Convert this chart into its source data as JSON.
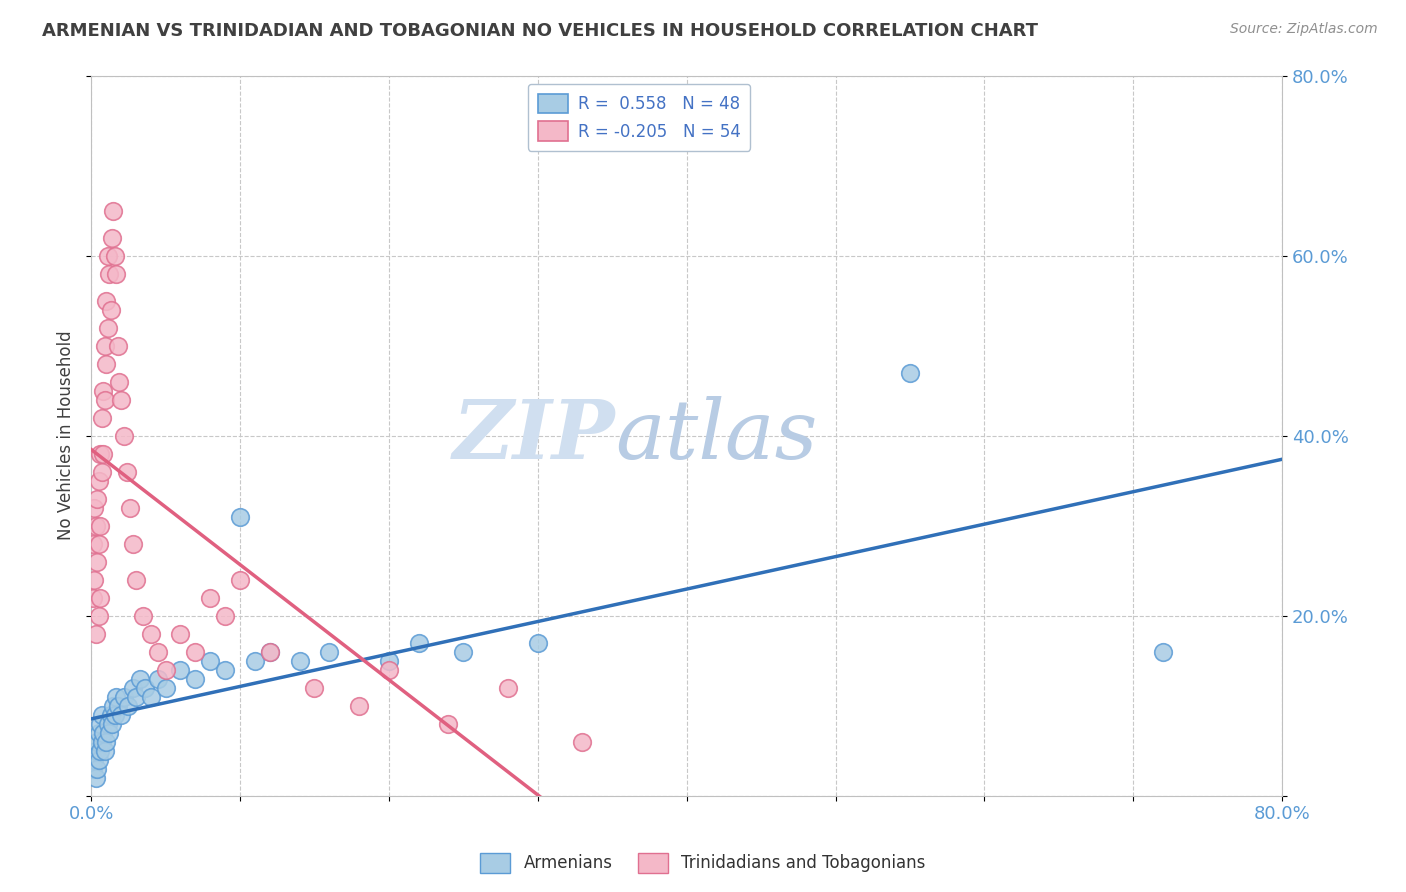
{
  "title": "ARMENIAN VS TRINIDADIAN AND TOBAGONIAN NO VEHICLES IN HOUSEHOLD CORRELATION CHART",
  "source": "Source: ZipAtlas.com",
  "ylabel": "No Vehicles in Household",
  "xlim": [
    0.0,
    0.8
  ],
  "ylim": [
    0.0,
    0.8
  ],
  "legend_armenians": "Armenians",
  "legend_trinidadians": "Trinidadians and Tobagonians",
  "armenian_R": "0.558",
  "armenian_N": "48",
  "trinidadian_R": "-0.205",
  "trinidadian_N": "54",
  "blue_scatter_color": "#a8cce4",
  "blue_scatter_edge": "#5b9bd5",
  "pink_scatter_color": "#f4b8c8",
  "pink_scatter_edge": "#e07090",
  "blue_line_color": "#3070b8",
  "pink_line_color": "#e06080",
  "watermark_color": "#d0dff0",
  "background_color": "#ffffff",
  "grid_color": "#c8c8c8",
  "title_color": "#404040",
  "axis_label_color": "#5b9bd5",
  "legend_text_color": "#4472c4",
  "armenian_points_x": [
    0.001,
    0.002,
    0.003,
    0.003,
    0.004,
    0.004,
    0.005,
    0.005,
    0.006,
    0.006,
    0.007,
    0.007,
    0.008,
    0.009,
    0.01,
    0.011,
    0.012,
    0.013,
    0.014,
    0.015,
    0.016,
    0.017,
    0.018,
    0.02,
    0.022,
    0.025,
    0.028,
    0.03,
    0.033,
    0.036,
    0.04,
    0.045,
    0.05,
    0.06,
    0.07,
    0.08,
    0.09,
    0.1,
    0.11,
    0.12,
    0.14,
    0.16,
    0.2,
    0.22,
    0.25,
    0.3,
    0.55,
    0.72
  ],
  "armenian_points_y": [
    0.03,
    0.04,
    0.05,
    0.02,
    0.03,
    0.06,
    0.04,
    0.07,
    0.05,
    0.08,
    0.06,
    0.09,
    0.07,
    0.05,
    0.06,
    0.08,
    0.07,
    0.09,
    0.08,
    0.1,
    0.09,
    0.11,
    0.1,
    0.09,
    0.11,
    0.1,
    0.12,
    0.11,
    0.13,
    0.12,
    0.11,
    0.13,
    0.12,
    0.14,
    0.13,
    0.15,
    0.14,
    0.31,
    0.15,
    0.16,
    0.15,
    0.16,
    0.15,
    0.17,
    0.16,
    0.17,
    0.47,
    0.16
  ],
  "trinidadian_points_x": [
    0.001,
    0.001,
    0.002,
    0.002,
    0.003,
    0.003,
    0.004,
    0.004,
    0.005,
    0.005,
    0.005,
    0.006,
    0.006,
    0.006,
    0.007,
    0.007,
    0.008,
    0.008,
    0.009,
    0.009,
    0.01,
    0.01,
    0.011,
    0.011,
    0.012,
    0.013,
    0.014,
    0.015,
    0.016,
    0.017,
    0.018,
    0.019,
    0.02,
    0.022,
    0.024,
    0.026,
    0.028,
    0.03,
    0.035,
    0.04,
    0.045,
    0.05,
    0.06,
    0.07,
    0.08,
    0.09,
    0.1,
    0.12,
    0.15,
    0.18,
    0.2,
    0.24,
    0.28,
    0.33
  ],
  "trinidadian_points_y": [
    0.28,
    0.22,
    0.32,
    0.24,
    0.3,
    0.18,
    0.33,
    0.26,
    0.35,
    0.28,
    0.2,
    0.38,
    0.3,
    0.22,
    0.42,
    0.36,
    0.45,
    0.38,
    0.5,
    0.44,
    0.55,
    0.48,
    0.6,
    0.52,
    0.58,
    0.54,
    0.62,
    0.65,
    0.6,
    0.58,
    0.5,
    0.46,
    0.44,
    0.4,
    0.36,
    0.32,
    0.28,
    0.24,
    0.2,
    0.18,
    0.16,
    0.14,
    0.18,
    0.16,
    0.22,
    0.2,
    0.24,
    0.16,
    0.12,
    0.1,
    0.14,
    0.08,
    0.12,
    0.06
  ]
}
